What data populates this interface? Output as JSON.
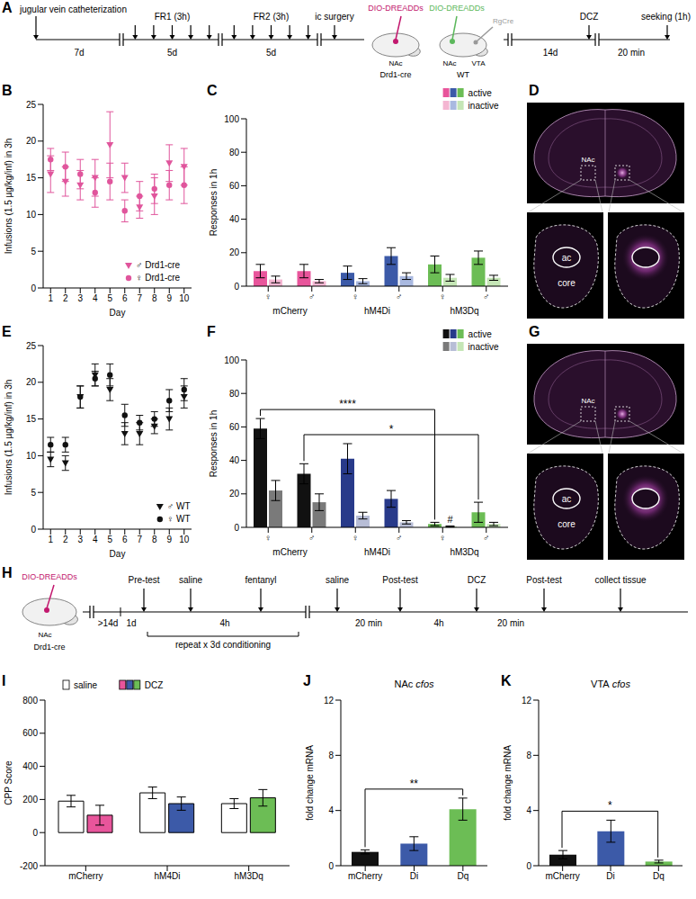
{
  "panel_A": {
    "label": "A",
    "catheterization": "jugular vein catheterization",
    "recovery": "7d",
    "fr1": {
      "title": "FR1 (3h)",
      "days": "5d",
      "arrows": 5
    },
    "fr2": {
      "title": "FR2 (3h)",
      "days": "5d",
      "arrows": 5
    },
    "surgery": "ic surgery",
    "injections": [
      {
        "virus": "DIO-DREADDs",
        "color": "#c2186e",
        "target": "NAc",
        "strain": "Drd1-cre"
      },
      {
        "virus": "DIO-DREADDs",
        "color": "#5cb85c",
        "target": "NAc",
        "second_virus": "RgCre",
        "second_color": "#999999",
        "second_target": "VTA",
        "strain": "WT"
      }
    ],
    "wait": "14d",
    "drug": "DCZ",
    "delay": "20 min",
    "test": "seeking (1h)"
  },
  "chart_data": [
    {
      "panel": "B",
      "type": "scatter",
      "x_label": "Day",
      "y_label": "Infusions (1.5 µg/kg/inf) in 3h",
      "x": [
        1,
        2,
        3,
        4,
        5,
        6,
        7,
        8,
        9,
        10
      ],
      "xlim": [
        0.5,
        10.5
      ],
      "xticks": [
        1,
        2,
        3,
        4,
        5,
        6,
        7,
        8,
        9,
        10
      ],
      "ylim": [
        0,
        25
      ],
      "yticks": [
        0,
        5,
        10,
        15,
        20,
        25
      ],
      "legend": "lower right",
      "series": [
        {
          "name": "♂ Drd1-cre",
          "color": "#e0559c",
          "marker": "triangle-down",
          "values": [
            15.5,
            14.5,
            14,
            15,
            19.5,
            15,
            11,
            12.5,
            17,
            16.5
          ],
          "errors": [
            2.5,
            2,
            2,
            2.5,
            4.5,
            2,
            1.5,
            2.5,
            2.5,
            2.5
          ]
        },
        {
          "name": "♀ Drd1-cre",
          "color": "#e0559c",
          "marker": "circle",
          "values": [
            17.5,
            16.5,
            15.5,
            13,
            14.5,
            10.5,
            12.5,
            13.5,
            14,
            14
          ],
          "errors": [
            1.5,
            2,
            2,
            2,
            2.5,
            1.5,
            2,
            2,
            2,
            2.5
          ]
        }
      ]
    },
    {
      "panel": "C",
      "type": "bar",
      "y_label": "Responses in 1h",
      "categories": [
        "♀",
        "♂",
        "♀",
        "♂",
        "♀",
        "♂"
      ],
      "group_labels": [
        "mCherry",
        "hM4Di",
        "hM3Dq"
      ],
      "ylim": [
        0,
        100
      ],
      "yticks": [
        0,
        20,
        40,
        60,
        80,
        100
      ],
      "legend": "upper right",
      "series": [
        {
          "name": "active",
          "colors": [
            "#e8559b",
            "#e8559b",
            "#3c5aa8",
            "#3c5aa8",
            "#6cbd55",
            "#6cbd55"
          ],
          "values": [
            9,
            9,
            8,
            18,
            13,
            17
          ],
          "errors": [
            4,
            4,
            4,
            5,
            5,
            4
          ]
        },
        {
          "name": "inactive",
          "colors": [
            "#f4b6d2",
            "#f4b6d2",
            "#a9b9e0",
            "#a9b9e0",
            "#c5e6b6",
            "#c5e6b6"
          ],
          "values": [
            4,
            3,
            3,
            6,
            5,
            5
          ],
          "errors": [
            2,
            1,
            1.5,
            2,
            2,
            1.5
          ]
        }
      ]
    },
    {
      "panel": "E",
      "type": "scatter",
      "x_label": "Day",
      "y_label": "Infusions (1.5 µg/kg/inf) in 3h",
      "x": [
        1,
        2,
        3,
        4,
        5,
        6,
        7,
        8,
        9,
        10
      ],
      "xlim": [
        0.5,
        10.5
      ],
      "xticks": [
        1,
        2,
        3,
        4,
        5,
        6,
        7,
        8,
        9,
        10
      ],
      "ylim": [
        0,
        25
      ],
      "yticks": [
        0,
        5,
        10,
        15,
        20,
        25
      ],
      "legend": "lower right",
      "series": [
        {
          "name": "♂ WT",
          "color": "#111111",
          "marker": "triangle-down",
          "values": [
            9.5,
            9,
            18,
            21,
            19,
            13,
            13,
            14,
            15,
            18
          ],
          "errors": [
            1,
            1,
            1.5,
            1.5,
            1.5,
            1.5,
            1.5,
            1,
            1.5,
            1.5
          ]
        },
        {
          "name": "♀ WT",
          "color": "#111111",
          "marker": "circle",
          "values": [
            11.5,
            11.5,
            18,
            20.5,
            21,
            15.5,
            14.5,
            15,
            17.5,
            19
          ],
          "errors": [
            1,
            1,
            1.5,
            1,
            1.5,
            1.5,
            1,
            1,
            1.5,
            1.5
          ]
        }
      ]
    },
    {
      "panel": "F",
      "type": "bar",
      "y_label": "Responses in 1h",
      "categories": [
        "♀",
        "♂",
        "♀",
        "♂",
        "♀",
        "♂"
      ],
      "group_labels": [
        "mCherry",
        "hM4Di",
        "hM3Dq"
      ],
      "ylim": [
        0,
        100
      ],
      "yticks": [
        0,
        20,
        40,
        60,
        80,
        100
      ],
      "legend": "upper right",
      "series": [
        {
          "name": "active",
          "colors": [
            "#111111",
            "#111111",
            "#283a8a",
            "#283a8a",
            "#6cbd55",
            "#6cbd55"
          ],
          "values": [
            59,
            32,
            41,
            17,
            2,
            9
          ],
          "errors": [
            6,
            6,
            9,
            5,
            1,
            6
          ]
        },
        {
          "name": "inactive",
          "colors": [
            "#7a7a7a",
            "#7a7a7a",
            "#b7bdd6",
            "#b7bdd6",
            "#c5e6b6",
            "#c5e6b6"
          ],
          "values": [
            22,
            15,
            7,
            3,
            0.5,
            2
          ],
          "errors": [
            6,
            5,
            2,
            1,
            0.3,
            1
          ]
        }
      ],
      "annotations": [
        {
          "text": "*",
          "from": 1,
          "to": 5,
          "series": "active"
        },
        {
          "text": "****",
          "from": 0,
          "to": 4,
          "series": "active"
        },
        {
          "text": "#",
          "at": 4,
          "series": "inactive"
        }
      ]
    },
    {
      "panel": "I",
      "type": "bar",
      "y_label": "CPP Score",
      "categories": [
        "mCherry",
        "hM4Di",
        "hM3Dq"
      ],
      "ylim": [
        -200,
        800
      ],
      "yticks": [
        -200,
        0,
        200,
        400,
        600,
        800
      ],
      "legend": "top",
      "series": [
        {
          "name": "saline",
          "color": "#ffffff",
          "values": [
            190,
            240,
            175
          ],
          "errors": [
            35,
            35,
            30
          ]
        },
        {
          "name": "DCZ",
          "colors": [
            "#e8559b",
            "#3c5aa8",
            "#6cbd55"
          ],
          "values": [
            105,
            175,
            210
          ],
          "errors": [
            60,
            40,
            50
          ]
        }
      ]
    },
    {
      "panel": "J",
      "type": "bar",
      "title": "NAc cfos",
      "y_label": "fold change mRNA",
      "categories": [
        "mCherry",
        "Di",
        "Dq"
      ],
      "ylim": [
        0,
        12
      ],
      "yticks": [
        0,
        4,
        8,
        12
      ],
      "values": [
        1,
        1.6,
        4.1
      ],
      "errors": [
        0.15,
        0.5,
        0.8
      ],
      "colors": [
        "#111111",
        "#3c5aa8",
        "#6cbd55"
      ],
      "annotations": [
        {
          "text": "**",
          "from": 0,
          "to": 2
        }
      ]
    },
    {
      "panel": "K",
      "type": "bar",
      "title": "VTA cfos",
      "y_label": "fold change mRNA",
      "categories": [
        "mCherry",
        "Di",
        "Dq"
      ],
      "ylim": [
        0,
        12
      ],
      "yticks": [
        0,
        4,
        8,
        12
      ],
      "values": [
        0.8,
        2.5,
        0.3
      ],
      "errors": [
        0.3,
        0.8,
        0.1
      ],
      "colors": [
        "#111111",
        "#3c5aa8",
        "#6cbd55"
      ],
      "annotations": [
        {
          "text": "*",
          "from": 0,
          "to": 2
        }
      ]
    }
  ],
  "images": [
    {
      "panel": "D",
      "region": "NAc",
      "structure": "ac",
      "subregion": "core"
    },
    {
      "panel": "G",
      "region": "NAc",
      "structure": "ac",
      "subregion": "core"
    }
  ],
  "panel_H": {
    "label": "H",
    "virus": "DIO-DREADDs",
    "color": "#c2186e",
    "target": "NAc",
    "strain": "Drd1-cre",
    "wait": ">14d",
    "pretest_gap": "1d",
    "pretest": "Pre-test",
    "conditioning": {
      "first": "saline",
      "gap": "4h",
      "second": "fentanyl",
      "repeat": "repeat x 3d conditioning"
    },
    "post1": {
      "injection": "saline",
      "delay": "20 min",
      "test": "Post-test"
    },
    "gap": "4h",
    "post2": {
      "injection": "DCZ",
      "delay": "20 min",
      "test": "Post-test"
    },
    "end": "collect tissue"
  }
}
